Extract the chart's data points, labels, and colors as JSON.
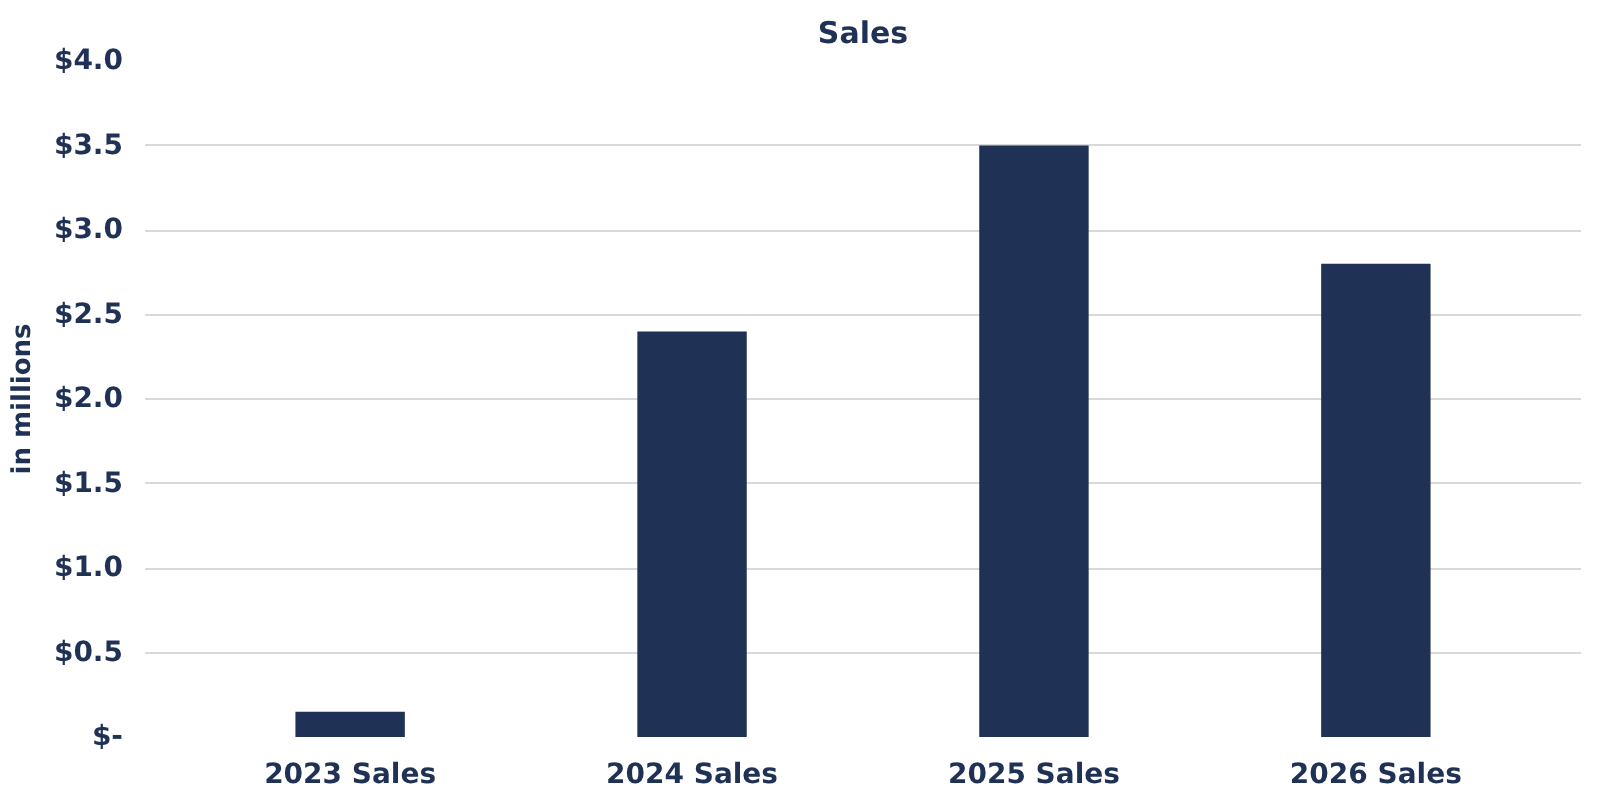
{
  "chart_data": {
    "type": "bar",
    "title": "Sales",
    "ylabel": "in millions",
    "categories": [
      "2023 Sales",
      "2024 Sales",
      "2025 Sales",
      "2026 Sales"
    ],
    "values": [
      0.15,
      2.4,
      3.5,
      2.8
    ],
    "color": "#1f3155",
    "ylim": [
      0,
      4.0
    ],
    "yticks": [
      {
        "value": 0,
        "label": "$-"
      },
      {
        "value": 0.5,
        "label": "$0.5"
      },
      {
        "value": 1.0,
        "label": "$1.0"
      },
      {
        "value": 1.5,
        "label": "$1.5"
      },
      {
        "value": 2.0,
        "label": "$2.0"
      },
      {
        "value": 2.5,
        "label": "$2.5"
      },
      {
        "value": 3.0,
        "label": "$3.0"
      },
      {
        "value": 3.5,
        "label": "$3.5"
      },
      {
        "value": 4.0,
        "label": "$4.0"
      }
    ],
    "grid": "y"
  }
}
